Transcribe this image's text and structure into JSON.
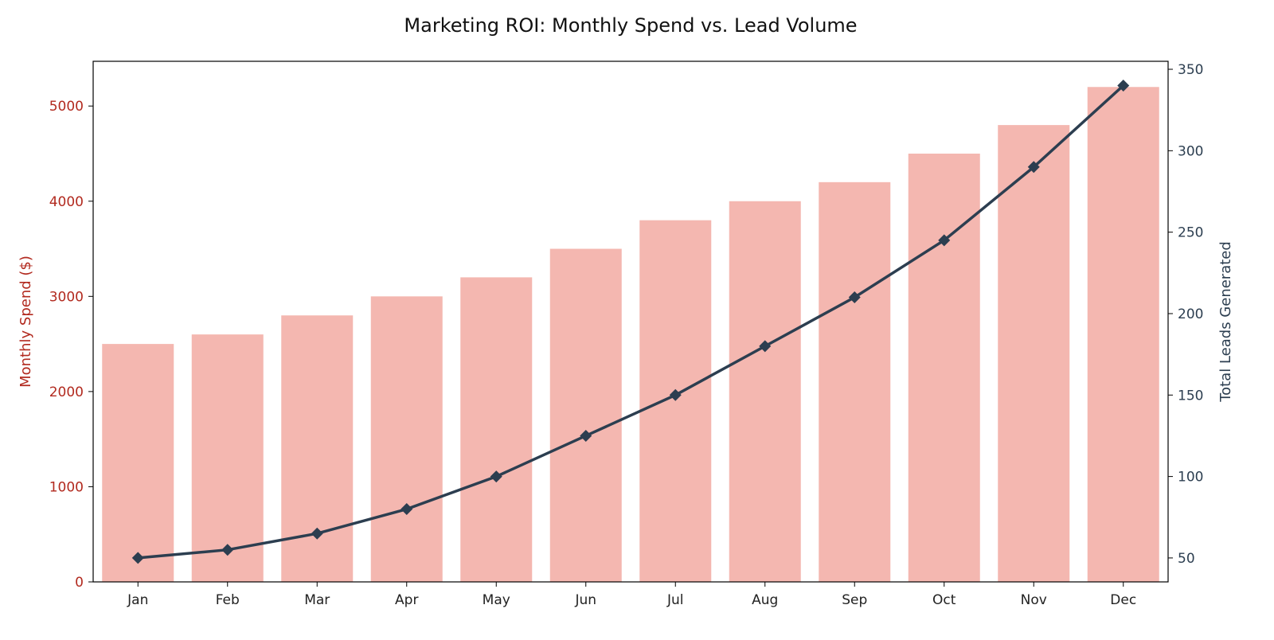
{
  "chart_data": {
    "type": "bar+line",
    "title": "Marketing ROI: Monthly Spend vs. Lead Volume",
    "categories": [
      "Jan",
      "Feb",
      "Mar",
      "Apr",
      "May",
      "Jun",
      "Jul",
      "Aug",
      "Sep",
      "Oct",
      "Nov",
      "Dec"
    ],
    "series": [
      {
        "type": "bar",
        "axis": "left",
        "values": [
          2500,
          2600,
          2800,
          3000,
          3200,
          3500,
          3800,
          4000,
          4200,
          4500,
          4800,
          5200
        ],
        "color": "#f4b7b0"
      },
      {
        "type": "line",
        "axis": "right",
        "marker": "diamond",
        "values": [
          50,
          55,
          65,
          80,
          100,
          125,
          150,
          180,
          210,
          245,
          290,
          340
        ],
        "color": "#2c3e50"
      }
    ],
    "ylabel": "Monthly Spend ($)",
    "ylabel_color": "#b22a1f",
    "ylim": [
      0,
      5470
    ],
    "yticks": [
      0,
      1000,
      2000,
      3000,
      4000,
      5000
    ],
    "y2label": "Total Leads Generated",
    "y2label_color": "#2c3e50",
    "y2lim": [
      35.3,
      354.9
    ],
    "y2ticks": [
      50,
      100,
      150,
      200,
      250,
      300,
      350
    ],
    "grid": false
  }
}
